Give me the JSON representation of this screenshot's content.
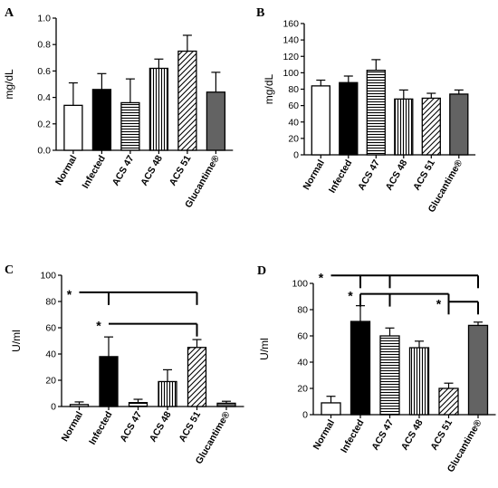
{
  "chart_data": [
    {
      "type": "bar",
      "panel": "A",
      "ylabel": "mg/dL",
      "ylim": [
        0,
        1.0
      ],
      "yticks": [
        "0.0",
        "0.2",
        "0.4",
        "0.6",
        "0.8",
        "1.0"
      ],
      "categories": [
        "Normal",
        "Infected",
        "ACS 47",
        "ACS 48",
        "ACS 51",
        "Glucantime®"
      ],
      "values": [
        0.34,
        0.46,
        0.36,
        0.62,
        0.75,
        0.44
      ],
      "errors": [
        0.17,
        0.12,
        0.18,
        0.07,
        0.12,
        0.15
      ],
      "significance": []
    },
    {
      "type": "bar",
      "panel": "B",
      "ylabel": "mg/dL",
      "ylim": [
        0,
        160
      ],
      "yticks": [
        "0",
        "20",
        "40",
        "60",
        "80",
        "100",
        "120",
        "140",
        "160"
      ],
      "categories": [
        "Normal",
        "Infected",
        "ACS 47",
        "ACS 48",
        "ACS 51",
        "Glucantime®"
      ],
      "values": [
        84,
        88,
        103,
        68,
        69,
        74
      ],
      "errors": [
        7,
        8,
        13,
        11,
        6,
        5
      ],
      "significance": []
    },
    {
      "type": "bar",
      "panel": "C",
      "ylabel": "U/ml",
      "ylim": [
        0,
        100
      ],
      "yticks": [
        "0",
        "20",
        "40",
        "60",
        "80",
        "100"
      ],
      "categories": [
        "Normal",
        "Infected",
        "ACS 47",
        "ACS 48",
        "ACS 51",
        "Glucantime®"
      ],
      "values": [
        1.5,
        38,
        3,
        19,
        45,
        2.5
      ],
      "errors": [
        2,
        15,
        2.5,
        9,
        6,
        1.5
      ],
      "significance": [
        {
          "label": "*",
          "from": 0,
          "to": 4,
          "level": 87,
          "drops": [
            1,
            4
          ]
        },
        {
          "label": "*",
          "from": 1,
          "to": 4,
          "level": 63,
          "drops": [
            4
          ]
        }
      ]
    },
    {
      "type": "bar",
      "panel": "D",
      "ylabel": "U/ml",
      "ylim": [
        0,
        100
      ],
      "yticks": [
        "0",
        "20",
        "40",
        "60",
        "80",
        "100"
      ],
      "categories": [
        "Normal",
        "Infected",
        "ACS 47",
        "ACS 48",
        "ACS 51",
        "Glucantime®"
      ],
      "values": [
        9,
        71,
        60,
        51,
        20,
        68
      ],
      "errors": [
        5,
        12,
        6,
        5,
        4,
        2.5
      ],
      "significance": [
        {
          "label": "*",
          "from": 0,
          "to": 5,
          "level": 106,
          "drops": [
            1,
            2,
            5
          ]
        },
        {
          "label": "*",
          "from": 1,
          "to": 4,
          "level": 92,
          "drops": [
            1,
            2,
            4
          ]
        },
        {
          "label": "*",
          "from": 4,
          "to": 5,
          "level": 86,
          "drops": [
            4,
            5
          ]
        }
      ]
    }
  ]
}
